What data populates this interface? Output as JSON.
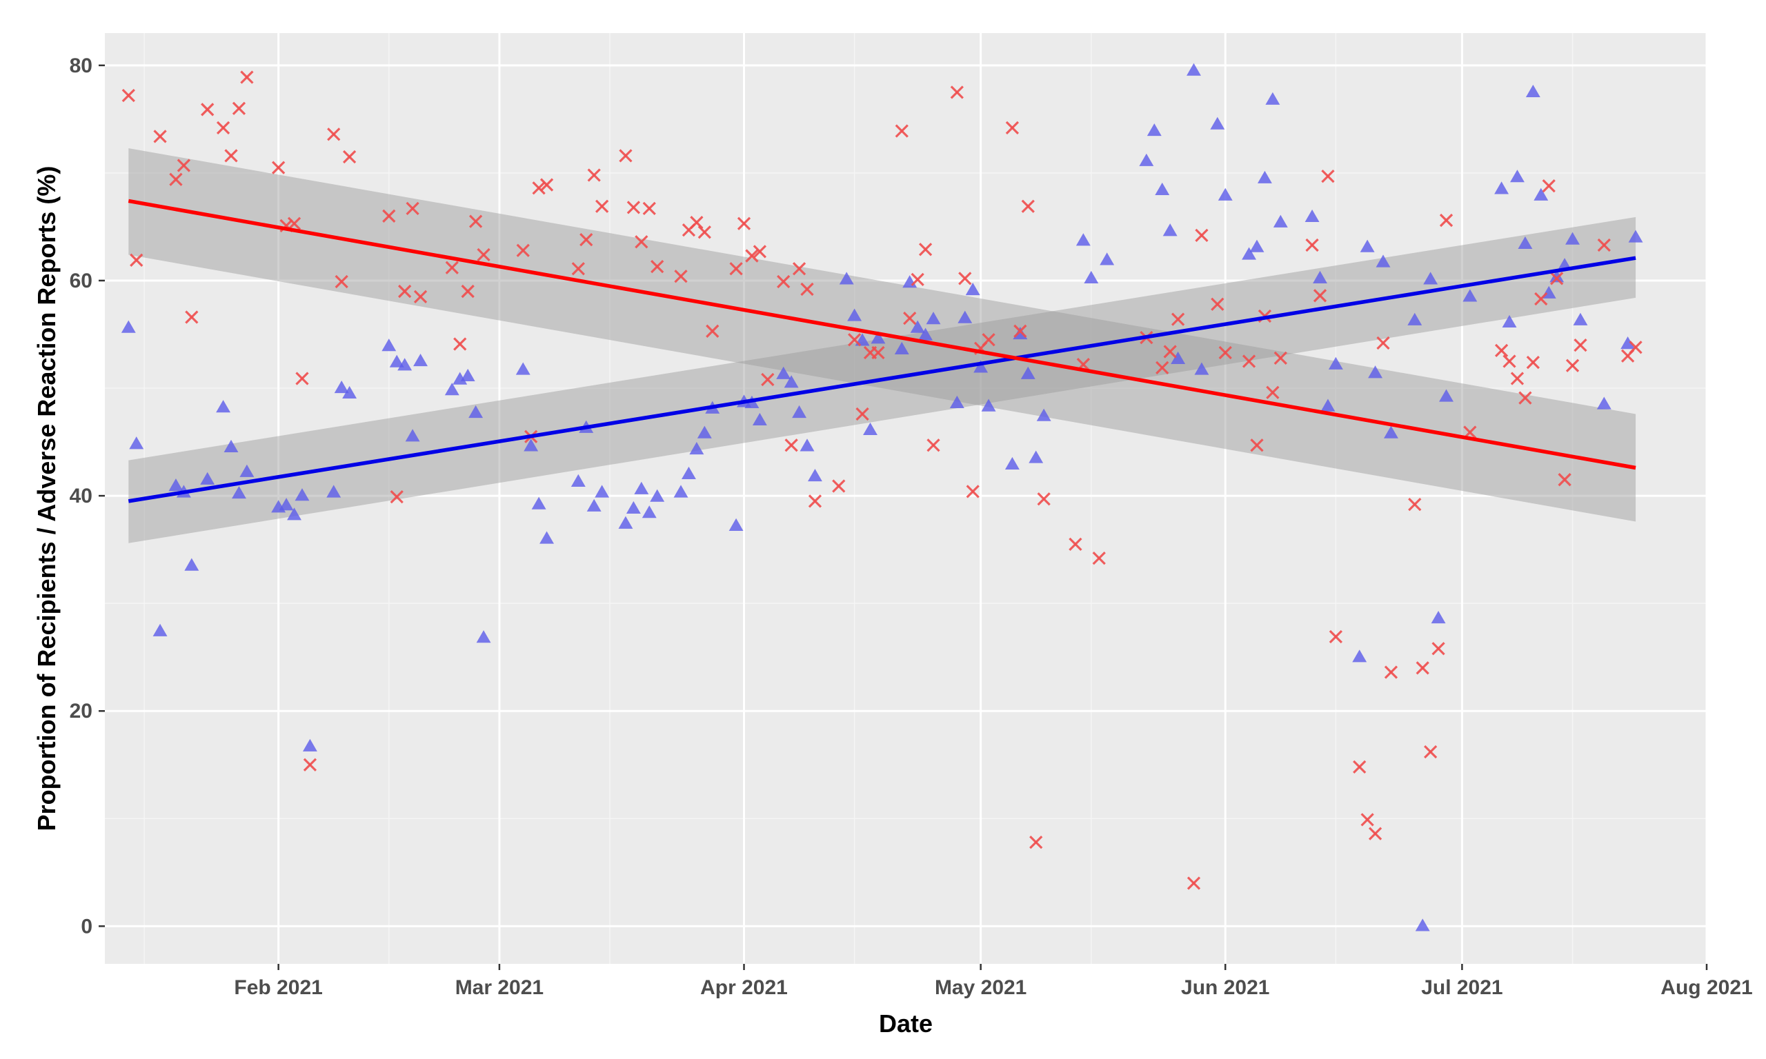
{
  "chart_data": {
    "type": "scatter",
    "title": "",
    "xlabel": "Date",
    "ylabel": "Proportion of Recipients / Adverse Reaction Reports (%)",
    "xlim": [
      "2021-01-10",
      "2021-08-01"
    ],
    "ylim": [
      -3.5,
      83
    ],
    "grid": true,
    "legend": "none",
    "y_ticks": [
      0,
      20,
      40,
      60,
      80
    ],
    "x_ticks": [
      {
        "date": "2021-02-01",
        "label": "Feb 2021"
      },
      {
        "date": "2021-03-01",
        "label": "Mar 2021"
      },
      {
        "date": "2021-04-01",
        "label": "Apr 2021"
      },
      {
        "date": "2021-05-01",
        "label": "May 2021"
      },
      {
        "date": "2021-06-01",
        "label": "Jun 2021"
      },
      {
        "date": "2021-07-01",
        "label": "Jul 2021"
      },
      {
        "date": "2021-08-01",
        "label": "Aug 2021"
      }
    ],
    "x_minor_dates": [
      "2021-01-15",
      "2021-02-15",
      "2021-03-15",
      "2021-04-15",
      "2021-05-15",
      "2021-06-15",
      "2021-07-15"
    ],
    "series": [
      {
        "marker": "triangle",
        "color": "#5b5bea",
        "opacity": 0.8,
        "points": [
          [
            "2021-01-13",
            55.6
          ],
          [
            "2021-01-14",
            44.8
          ],
          [
            "2021-01-17",
            27.4
          ],
          [
            "2021-01-19",
            40.9
          ],
          [
            "2021-01-20",
            40.3
          ],
          [
            "2021-01-21",
            33.5
          ],
          [
            "2021-01-23",
            41.5
          ],
          [
            "2021-01-25",
            48.2
          ],
          [
            "2021-01-26",
            44.5
          ],
          [
            "2021-01-27",
            40.2
          ],
          [
            "2021-01-28",
            42.2
          ],
          [
            "2021-02-01",
            38.9
          ],
          [
            "2021-02-02",
            39.1
          ],
          [
            "2021-02-03",
            38.2
          ],
          [
            "2021-02-04",
            40.0
          ],
          [
            "2021-02-05",
            16.7
          ],
          [
            "2021-02-08",
            40.3
          ],
          [
            "2021-02-09",
            50.0
          ],
          [
            "2021-02-10",
            49.5
          ],
          [
            "2021-02-15",
            53.9
          ],
          [
            "2021-02-16",
            52.4
          ],
          [
            "2021-02-17",
            52.1
          ],
          [
            "2021-02-18",
            45.5
          ],
          [
            "2021-02-19",
            52.5
          ],
          [
            "2021-02-23",
            49.8
          ],
          [
            "2021-02-24",
            50.8
          ],
          [
            "2021-02-25",
            51.1
          ],
          [
            "2021-02-26",
            47.7
          ],
          [
            "2021-02-27",
            26.8
          ],
          [
            "2021-03-04",
            51.7
          ],
          [
            "2021-03-05",
            44.6
          ],
          [
            "2021-03-06",
            39.2
          ],
          [
            "2021-03-07",
            36.0
          ],
          [
            "2021-03-11",
            41.3
          ],
          [
            "2021-03-12",
            46.3
          ],
          [
            "2021-03-13",
            39.0
          ],
          [
            "2021-03-14",
            40.3
          ],
          [
            "2021-03-17",
            37.4
          ],
          [
            "2021-03-18",
            38.8
          ],
          [
            "2021-03-19",
            40.6
          ],
          [
            "2021-03-20",
            38.4
          ],
          [
            "2021-03-21",
            39.9
          ],
          [
            "2021-03-24",
            40.3
          ],
          [
            "2021-03-25",
            42.0
          ],
          [
            "2021-03-26",
            44.3
          ],
          [
            "2021-03-27",
            45.8
          ],
          [
            "2021-03-28",
            48.1
          ],
          [
            "2021-03-31",
            37.2
          ],
          [
            "2021-04-01",
            48.7
          ],
          [
            "2021-04-02",
            48.6
          ],
          [
            "2021-04-03",
            47.0
          ],
          [
            "2021-04-06",
            51.3
          ],
          [
            "2021-04-07",
            50.5
          ],
          [
            "2021-04-08",
            47.7
          ],
          [
            "2021-04-09",
            44.6
          ],
          [
            "2021-04-10",
            41.8
          ],
          [
            "2021-04-14",
            60.1
          ],
          [
            "2021-04-15",
            56.7
          ],
          [
            "2021-04-16",
            54.4
          ],
          [
            "2021-04-17",
            46.1
          ],
          [
            "2021-04-18",
            54.6
          ],
          [
            "2021-04-21",
            53.6
          ],
          [
            "2021-04-22",
            59.8
          ],
          [
            "2021-04-23",
            55.6
          ],
          [
            "2021-04-24",
            54.9
          ],
          [
            "2021-04-25",
            56.4
          ],
          [
            "2021-04-28",
            48.6
          ],
          [
            "2021-04-29",
            56.5
          ],
          [
            "2021-04-30",
            59.1
          ],
          [
            "2021-05-01",
            51.9
          ],
          [
            "2021-05-02",
            48.3
          ],
          [
            "2021-05-05",
            42.9
          ],
          [
            "2021-05-06",
            55.0
          ],
          [
            "2021-05-07",
            51.3
          ],
          [
            "2021-05-08",
            43.5
          ],
          [
            "2021-05-09",
            47.4
          ],
          [
            "2021-05-14",
            63.7
          ],
          [
            "2021-05-15",
            60.2
          ],
          [
            "2021-05-17",
            61.9
          ],
          [
            "2021-05-22",
            71.1
          ],
          [
            "2021-05-23",
            73.9
          ],
          [
            "2021-05-24",
            68.4
          ],
          [
            "2021-05-25",
            64.6
          ],
          [
            "2021-05-26",
            52.7
          ],
          [
            "2021-05-28",
            79.5
          ],
          [
            "2021-05-29",
            51.7
          ],
          [
            "2021-05-31",
            74.5
          ],
          [
            "2021-06-01",
            67.9
          ],
          [
            "2021-06-04",
            62.4
          ],
          [
            "2021-06-05",
            63.1
          ],
          [
            "2021-06-06",
            69.5
          ],
          [
            "2021-06-07",
            76.8
          ],
          [
            "2021-06-08",
            65.4
          ],
          [
            "2021-06-12",
            65.9
          ],
          [
            "2021-06-13",
            60.2
          ],
          [
            "2021-06-14",
            48.3
          ],
          [
            "2021-06-15",
            52.2
          ],
          [
            "2021-06-18",
            25.0
          ],
          [
            "2021-06-19",
            63.1
          ],
          [
            "2021-06-20",
            51.4
          ],
          [
            "2021-06-21",
            61.7
          ],
          [
            "2021-06-22",
            45.8
          ],
          [
            "2021-06-25",
            56.3
          ],
          [
            "2021-06-26",
            0.0
          ],
          [
            "2021-06-27",
            60.1
          ],
          [
            "2021-06-28",
            28.6
          ],
          [
            "2021-06-29",
            49.2
          ],
          [
            "2021-07-02",
            58.5
          ],
          [
            "2021-07-06",
            68.5
          ],
          [
            "2021-07-07",
            56.1
          ],
          [
            "2021-07-08",
            69.6
          ],
          [
            "2021-07-09",
            63.4
          ],
          [
            "2021-07-10",
            77.5
          ],
          [
            "2021-07-11",
            67.9
          ],
          [
            "2021-07-12",
            58.8
          ],
          [
            "2021-07-13",
            60.3
          ],
          [
            "2021-07-14",
            61.4
          ],
          [
            "2021-07-15",
            63.8
          ],
          [
            "2021-07-16",
            56.3
          ],
          [
            "2021-07-19",
            48.5
          ],
          [
            "2021-07-22",
            54.1
          ],
          [
            "2021-07-23",
            64.0
          ]
        ]
      },
      {
        "marker": "x",
        "color": "#ef4d4d",
        "opacity": 0.9,
        "points": [
          [
            "2021-01-13",
            77.2
          ],
          [
            "2021-01-14",
            61.9
          ],
          [
            "2021-01-17",
            73.4
          ],
          [
            "2021-01-19",
            69.4
          ],
          [
            "2021-01-20",
            70.7
          ],
          [
            "2021-01-21",
            56.6
          ],
          [
            "2021-01-23",
            75.9
          ],
          [
            "2021-01-25",
            74.2
          ],
          [
            "2021-01-26",
            71.6
          ],
          [
            "2021-01-27",
            76.0
          ],
          [
            "2021-01-28",
            78.9
          ],
          [
            "2021-02-01",
            70.5
          ],
          [
            "2021-02-02",
            65.1
          ],
          [
            "2021-02-03",
            65.3
          ],
          [
            "2021-02-04",
            50.9
          ],
          [
            "2021-02-05",
            15.0
          ],
          [
            "2021-02-08",
            73.6
          ],
          [
            "2021-02-09",
            59.9
          ],
          [
            "2021-02-10",
            71.5
          ],
          [
            "2021-02-15",
            66.0
          ],
          [
            "2021-02-16",
            39.9
          ],
          [
            "2021-02-17",
            59.0
          ],
          [
            "2021-02-18",
            66.7
          ],
          [
            "2021-02-19",
            58.5
          ],
          [
            "2021-02-23",
            61.2
          ],
          [
            "2021-02-24",
            54.1
          ],
          [
            "2021-02-25",
            59.0
          ],
          [
            "2021-02-26",
            65.5
          ],
          [
            "2021-02-27",
            62.4
          ],
          [
            "2021-03-04",
            62.8
          ],
          [
            "2021-03-05",
            45.5
          ],
          [
            "2021-03-06",
            68.6
          ],
          [
            "2021-03-07",
            68.9
          ],
          [
            "2021-03-11",
            61.1
          ],
          [
            "2021-03-12",
            63.8
          ],
          [
            "2021-03-13",
            69.8
          ],
          [
            "2021-03-14",
            66.9
          ],
          [
            "2021-03-17",
            71.6
          ],
          [
            "2021-03-18",
            66.8
          ],
          [
            "2021-03-19",
            63.6
          ],
          [
            "2021-03-20",
            66.7
          ],
          [
            "2021-03-21",
            61.3
          ],
          [
            "2021-03-24",
            60.4
          ],
          [
            "2021-03-25",
            64.7
          ],
          [
            "2021-03-26",
            65.4
          ],
          [
            "2021-03-27",
            64.5
          ],
          [
            "2021-03-28",
            55.3
          ],
          [
            "2021-03-31",
            61.1
          ],
          [
            "2021-04-01",
            65.3
          ],
          [
            "2021-04-02",
            62.3
          ],
          [
            "2021-04-03",
            62.7
          ],
          [
            "2021-04-04",
            50.8
          ],
          [
            "2021-04-06",
            59.9
          ],
          [
            "2021-04-07",
            44.7
          ],
          [
            "2021-04-08",
            61.1
          ],
          [
            "2021-04-09",
            59.2
          ],
          [
            "2021-04-10",
            39.5
          ],
          [
            "2021-04-13",
            40.9
          ],
          [
            "2021-04-15",
            54.5
          ],
          [
            "2021-04-16",
            47.6
          ],
          [
            "2021-04-17",
            53.3
          ],
          [
            "2021-04-18",
            53.3
          ],
          [
            "2021-04-21",
            73.9
          ],
          [
            "2021-04-22",
            56.5
          ],
          [
            "2021-04-23",
            60.1
          ],
          [
            "2021-04-24",
            62.9
          ],
          [
            "2021-04-25",
            44.7
          ],
          [
            "2021-04-28",
            77.5
          ],
          [
            "2021-04-29",
            60.2
          ],
          [
            "2021-04-30",
            40.4
          ],
          [
            "2021-05-01",
            53.7
          ],
          [
            "2021-05-02",
            54.5
          ],
          [
            "2021-05-05",
            74.2
          ],
          [
            "2021-05-06",
            55.3
          ],
          [
            "2021-05-07",
            66.9
          ],
          [
            "2021-05-08",
            7.8
          ],
          [
            "2021-05-09",
            39.7
          ],
          [
            "2021-05-13",
            35.5
          ],
          [
            "2021-05-14",
            52.2
          ],
          [
            "2021-05-16",
            34.2
          ],
          [
            "2021-05-22",
            54.7
          ],
          [
            "2021-05-24",
            51.9
          ],
          [
            "2021-05-25",
            53.4
          ],
          [
            "2021-05-26",
            56.4
          ],
          [
            "2021-05-28",
            4.0
          ],
          [
            "2021-05-29",
            64.2
          ],
          [
            "2021-05-31",
            57.8
          ],
          [
            "2021-06-01",
            53.3
          ],
          [
            "2021-06-04",
            52.5
          ],
          [
            "2021-06-05",
            44.7
          ],
          [
            "2021-06-06",
            56.7
          ],
          [
            "2021-06-07",
            49.6
          ],
          [
            "2021-06-08",
            52.8
          ],
          [
            "2021-06-12",
            63.3
          ],
          [
            "2021-06-13",
            58.6
          ],
          [
            "2021-06-14",
            69.7
          ],
          [
            "2021-06-15",
            26.9
          ],
          [
            "2021-06-18",
            14.8
          ],
          [
            "2021-06-19",
            9.9
          ],
          [
            "2021-06-20",
            8.6
          ],
          [
            "2021-06-21",
            54.2
          ],
          [
            "2021-06-22",
            23.6
          ],
          [
            "2021-06-25",
            39.2
          ],
          [
            "2021-06-26",
            24.0
          ],
          [
            "2021-06-27",
            16.2
          ],
          [
            "2021-06-28",
            25.8
          ],
          [
            "2021-06-29",
            65.6
          ],
          [
            "2021-07-02",
            45.9
          ],
          [
            "2021-07-06",
            53.5
          ],
          [
            "2021-07-07",
            52.5
          ],
          [
            "2021-07-08",
            50.9
          ],
          [
            "2021-07-09",
            49.1
          ],
          [
            "2021-07-10",
            52.4
          ],
          [
            "2021-07-11",
            58.3
          ],
          [
            "2021-07-12",
            68.8
          ],
          [
            "2021-07-13",
            60.2
          ],
          [
            "2021-07-14",
            41.5
          ],
          [
            "2021-07-15",
            52.1
          ],
          [
            "2021-07-16",
            54.0
          ],
          [
            "2021-07-19",
            63.3
          ],
          [
            "2021-07-22",
            53.0
          ],
          [
            "2021-07-23",
            53.8
          ]
        ]
      }
    ],
    "trend_lines": [
      {
        "color": "#0000e6",
        "start": [
          "2021-01-13",
          39.5
        ],
        "end": [
          "2021-07-23",
          62.1
        ],
        "ci_start": [
          35.6,
          43.3
        ],
        "ci_end": [
          58.4,
          65.9
        ]
      },
      {
        "color": "#ff0000",
        "start": [
          "2021-01-13",
          67.4
        ],
        "end": [
          "2021-07-23",
          42.6
        ],
        "ci_start": [
          62.4,
          72.3
        ],
        "ci_end": [
          37.6,
          47.6
        ]
      }
    ],
    "ci_band_color": "#999999"
  }
}
